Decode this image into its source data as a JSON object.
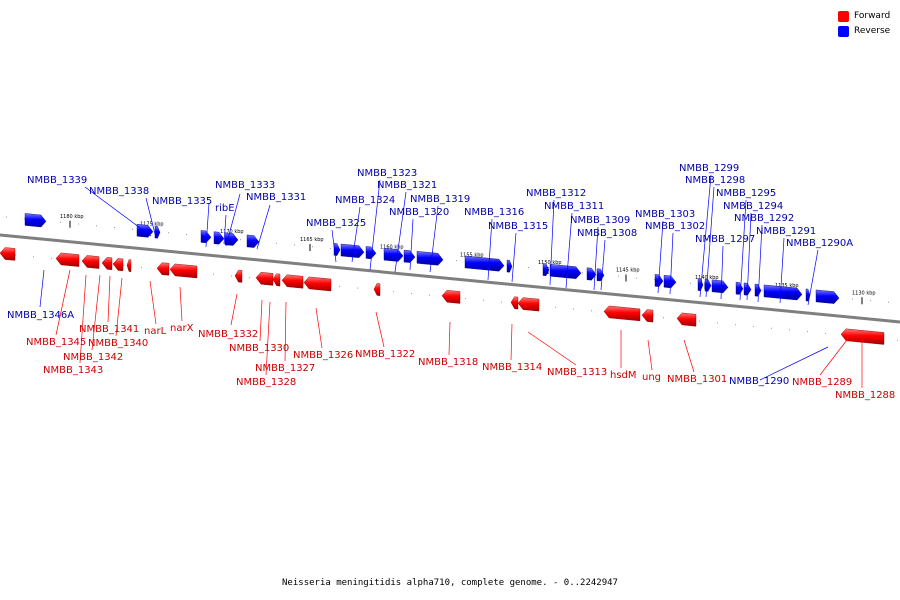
{
  "caption": "Neisseria meningitidis alpha710, complete genome. - 0..2242947",
  "legend": [
    {
      "label": "Forward",
      "color": "#ff0000"
    },
    {
      "label": "Reverse",
      "color": "#0000ff"
    }
  ],
  "colors": {
    "forward": "#ff0000",
    "reverse": "#0000ff",
    "forward_label": "#cc0000",
    "reverse_label": "#0000aa",
    "backbone": "#7f7f7f"
  },
  "ticks": [
    "1180 kbp",
    "1175 kbp",
    "1170 kbp",
    "1165 kbp",
    "1160 kbp",
    "1155 kbp",
    "1150 kbp",
    "1145 kbp",
    "1140 kbp",
    "1135 kbp",
    "1130 kbp"
  ],
  "reverse_genes": [
    "NMBB_1346A",
    "NMBB_1339",
    "NMBB_1338",
    "NMBB_1335",
    "NMBB_1333",
    "ribE",
    "NMBB_1331",
    "NMBB_1325",
    "NMBB_1324",
    "NMBB_1323",
    "NMBB_1321",
    "NMBB_1320",
    "NMBB_1319",
    "NMBB_1316",
    "NMBB_1315",
    "NMBB_1312",
    "NMBB_1311",
    "NMBB_1309",
    "NMBB_1308",
    "NMBB_1303",
    "NMBB_1302",
    "NMBB_1299",
    "NMBB_1298",
    "NMBB_1297",
    "NMBB_1295",
    "NMBB_1294",
    "NMBB_1292",
    "NMBB_1291",
    "NMBB_1290A",
    "NMBB_1290"
  ],
  "forward_genes": [
    "NMBB_1345",
    "NMBB_1343",
    "NMBB_1342",
    "NMBB_1341",
    "NMBB_1340",
    "narL",
    "narX",
    "NMBB_1332",
    "NMBB_1330",
    "NMBB_1328",
    "NMBB_1327",
    "NMBB_1326",
    "NMBB_1322",
    "NMBB_1318",
    "NMBB_1314",
    "NMBB_1313",
    "hsdM",
    "ung",
    "NMBB_1301",
    "NMBB_1289",
    "NMBB_1288"
  ]
}
